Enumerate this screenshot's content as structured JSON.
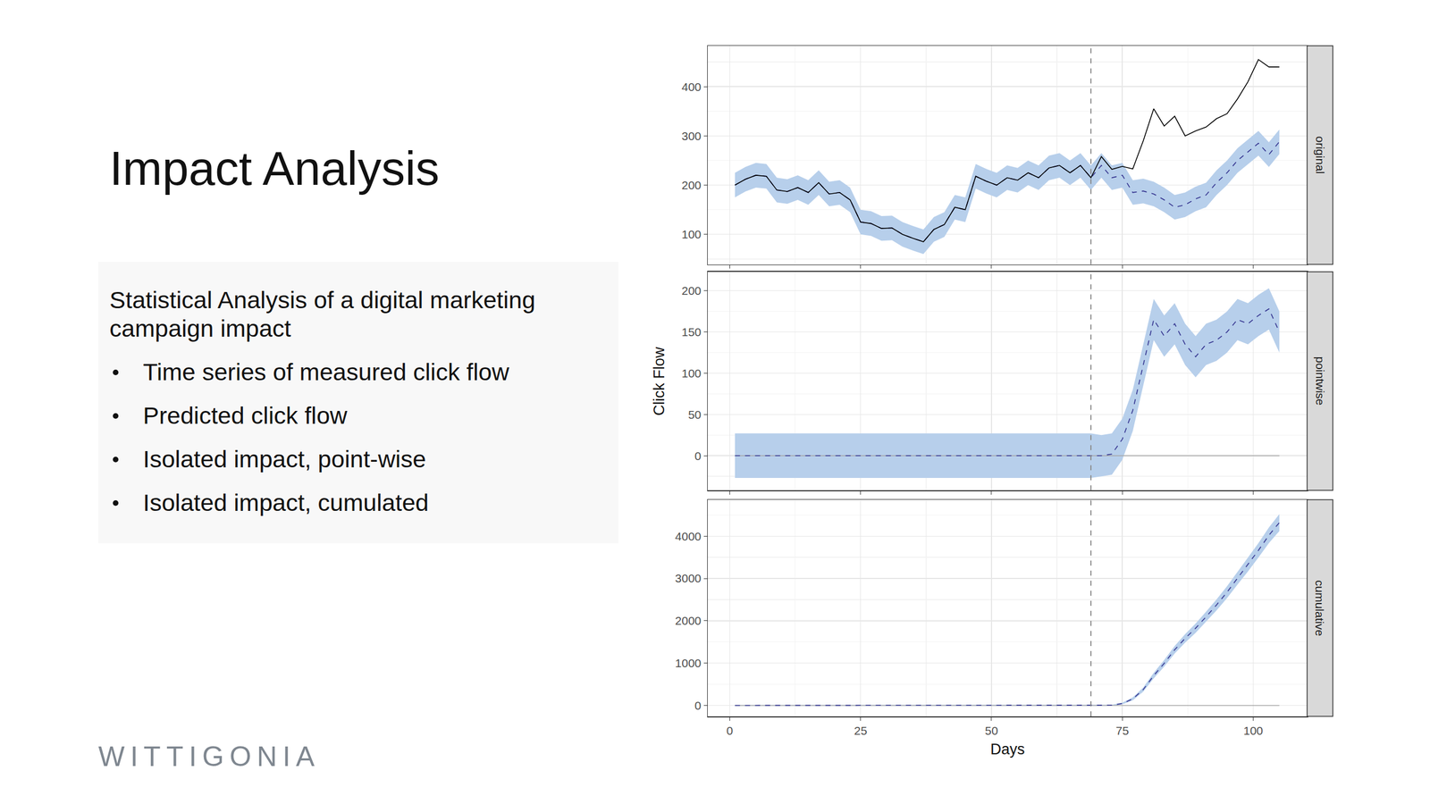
{
  "slide": {
    "title": "Impact Analysis",
    "box": {
      "heading": "Statistical Analysis of a digital marketing campaign impact",
      "bullets": [
        "Time series of measured click flow",
        "Predicted click flow",
        "Isolated impact, point-wise",
        "Isolated impact, cumulated"
      ]
    },
    "logo": "WITTIGONIA"
  },
  "chart_data": {
    "type": "line",
    "x_label": "Days",
    "y_label": "Click Flow",
    "grid": true,
    "x": [
      1,
      3,
      5,
      7,
      9,
      11,
      13,
      15,
      17,
      19,
      21,
      23,
      25,
      27,
      29,
      31,
      33,
      35,
      37,
      39,
      41,
      43,
      45,
      47,
      49,
      51,
      53,
      55,
      57,
      59,
      61,
      63,
      65,
      67,
      69,
      71,
      73,
      75,
      77,
      79,
      81,
      83,
      85,
      87,
      89,
      91,
      93,
      95,
      97,
      99,
      101,
      103,
      105
    ],
    "xlim": [
      -4.2,
      110.3
    ],
    "xticks": [
      0,
      25,
      50,
      75,
      100
    ],
    "intervention": {
      "value": 69,
      "color": "#8c8c8c",
      "line_style": "dashed"
    },
    "panels": [
      {
        "label": "original",
        "ylim": [
          39,
          483
        ],
        "yticks": [
          100,
          200,
          300,
          400
        ],
        "observed": {
          "color": "#000000",
          "line_style": "solid",
          "values": [
            200,
            212,
            220,
            218,
            190,
            187,
            195,
            185,
            205,
            182,
            185,
            170,
            125,
            122,
            112,
            113,
            100,
            92,
            85,
            110,
            120,
            155,
            150,
            218,
            208,
            200,
            215,
            210,
            225,
            215,
            235,
            240,
            225,
            240,
            215,
            258,
            232,
            238,
            233,
            290,
            355,
            320,
            340,
            300,
            310,
            318,
            335,
            345,
            375,
            410,
            455,
            440,
            440
          ]
        },
        "estimate": {
          "color": "#33338f",
          "line_style": "dashed",
          "values": [
            200,
            212,
            220,
            218,
            190,
            187,
            195,
            185,
            205,
            182,
            185,
            170,
            125,
            122,
            112,
            113,
            100,
            92,
            85,
            110,
            120,
            155,
            150,
            218,
            208,
            200,
            215,
            210,
            225,
            215,
            235,
            240,
            225,
            240,
            215,
            240,
            215,
            220,
            185,
            188,
            182,
            170,
            155,
            160,
            172,
            180,
            205,
            225,
            250,
            268,
            285,
            262,
            288
          ]
        },
        "interval": {
          "color": "#b7cfeb",
          "lower": [
            175,
            187,
            195,
            193,
            165,
            162,
            170,
            160,
            180,
            157,
            160,
            145,
            100,
            97,
            87,
            88,
            75,
            67,
            60,
            85,
            95,
            130,
            125,
            193,
            183,
            175,
            190,
            185,
            200,
            190,
            210,
            215,
            200,
            215,
            190,
            215,
            190,
            195,
            160,
            163,
            157,
            145,
            130,
            135,
            147,
            155,
            180,
            200,
            225,
            243,
            260,
            237,
            263
          ],
          "upper": [
            225,
            237,
            245,
            243,
            215,
            212,
            220,
            210,
            230,
            207,
            210,
            195,
            150,
            147,
            137,
            138,
            125,
            117,
            110,
            135,
            145,
            180,
            175,
            243,
            233,
            225,
            240,
            235,
            250,
            240,
            260,
            265,
            250,
            265,
            240,
            265,
            240,
            245,
            210,
            213,
            207,
            195,
            180,
            185,
            197,
            205,
            230,
            250,
            275,
            293,
            310,
            287,
            313
          ]
        }
      },
      {
        "label": "pointwise",
        "ylim": [
          -42,
          223
        ],
        "yticks": [
          0,
          50,
          100,
          150,
          200
        ],
        "reference": {
          "value": 0,
          "color": "#a6a6a6"
        },
        "estimate": {
          "color": "#33338f",
          "line_style": "dashed",
          "values": [
            0,
            0,
            0,
            0,
            0,
            0,
            0,
            0,
            0,
            0,
            0,
            0,
            0,
            0,
            0,
            0,
            0,
            0,
            0,
            0,
            0,
            0,
            0,
            0,
            0,
            0,
            0,
            0,
            0,
            0,
            0,
            0,
            0,
            0,
            0,
            0,
            2,
            20,
            55,
            110,
            165,
            145,
            160,
            135,
            120,
            135,
            140,
            150,
            165,
            160,
            170,
            178,
            150
          ]
        },
        "interval": {
          "color": "#b7cfeb",
          "lower": [
            -27,
            -27,
            -27,
            -27,
            -27,
            -27,
            -27,
            -27,
            -27,
            -27,
            -27,
            -27,
            -27,
            -27,
            -27,
            -27,
            -27,
            -27,
            -27,
            -27,
            -27,
            -27,
            -27,
            -27,
            -27,
            -27,
            -27,
            -27,
            -27,
            -27,
            -27,
            -27,
            -27,
            -27,
            -27,
            -25,
            -23,
            -5,
            30,
            85,
            140,
            120,
            135,
            110,
            95,
            110,
            115,
            125,
            140,
            135,
            145,
            153,
            125
          ],
          "upper": [
            27,
            27,
            27,
            27,
            27,
            27,
            27,
            27,
            27,
            27,
            27,
            27,
            27,
            27,
            27,
            27,
            27,
            27,
            27,
            27,
            27,
            27,
            27,
            27,
            27,
            27,
            27,
            27,
            27,
            27,
            27,
            27,
            27,
            27,
            27,
            25,
            27,
            45,
            80,
            135,
            190,
            170,
            185,
            160,
            145,
            160,
            165,
            175,
            190,
            185,
            195,
            203,
            175
          ]
        }
      },
      {
        "label": "cumulative",
        "ylim": [
          -258,
          4860
        ],
        "yticks": [
          0,
          1000,
          2000,
          3000,
          4000
        ],
        "reference": {
          "value": 0,
          "color": "#a6a6a6"
        },
        "estimate": {
          "color": "#33338f",
          "line_style": "dashed",
          "values": [
            0,
            0,
            0,
            0,
            0,
            0,
            0,
            0,
            0,
            0,
            0,
            0,
            0,
            0,
            0,
            0,
            0,
            0,
            0,
            0,
            0,
            0,
            0,
            0,
            0,
            0,
            0,
            0,
            0,
            0,
            0,
            0,
            0,
            0,
            0,
            0,
            5,
            45,
            155,
            375,
            705,
            995,
            1315,
            1585,
            1825,
            2095,
            2375,
            2675,
            3005,
            3325,
            3665,
            4020,
            4320
          ]
        },
        "interval": {
          "color": "#b7cfeb",
          "lower": [
            -10,
            -10,
            -10,
            -10,
            -10,
            -10,
            -10,
            -10,
            -10,
            -10,
            -10,
            -10,
            -10,
            -10,
            -10,
            -10,
            -10,
            -10,
            -10,
            -10,
            -10,
            -10,
            -10,
            -10,
            -10,
            -10,
            -10,
            -10,
            -10,
            -10,
            -10,
            -10,
            -10,
            -10,
            -10,
            -10,
            -7,
            25,
            120,
            325,
            640,
            915,
            1225,
            1485,
            1715,
            1975,
            2245,
            2535,
            2855,
            3165,
            3495,
            3835,
            4120
          ],
          "upper": [
            10,
            10,
            10,
            10,
            10,
            10,
            10,
            10,
            10,
            10,
            10,
            10,
            10,
            10,
            10,
            10,
            10,
            10,
            10,
            10,
            10,
            10,
            10,
            10,
            10,
            10,
            10,
            10,
            10,
            10,
            10,
            10,
            10,
            10,
            10,
            10,
            17,
            65,
            190,
            425,
            770,
            1075,
            1405,
            1685,
            1935,
            2215,
            2505,
            2815,
            3155,
            3485,
            3835,
            4205,
            4520
          ]
        }
      }
    ]
  }
}
